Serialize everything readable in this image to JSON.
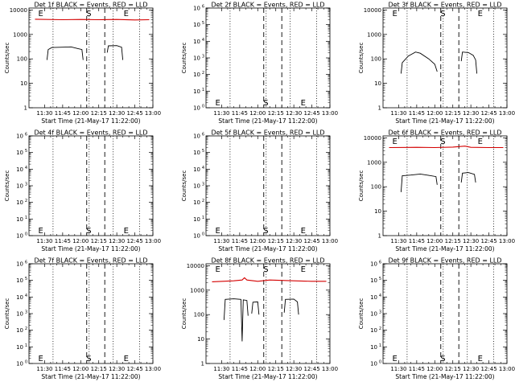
{
  "colors": {
    "events": "#000000",
    "lld": "#d40000",
    "background": "#ffffff"
  },
  "time_axis": {
    "start_minutes": 677,
    "end_minutes": 780,
    "ticks": [
      "11:30",
      "11:45",
      "12:00",
      "12:15",
      "12:30",
      "12:45",
      "13:00"
    ],
    "xlabel": "Start Time (21-May-17 11:22:00)"
  },
  "markers": {
    "dotted": [
      "11:37",
      "12:07",
      "12:27",
      "12:49"
    ],
    "dashed": [
      "12:05",
      "12:20"
    ],
    "letter_S_at": "12:04",
    "letter_E_at": "12:35",
    "letter_E_early_at": "11:24"
  },
  "log_ticks_counts": [
    "1",
    "10",
    "100",
    "1000",
    "10000"
  ],
  "chart_data": [
    {
      "type": "line",
      "title": "Det 1f BLACK = Events, RED = LLD",
      "ylabel": "Counts/sec",
      "ylim": [
        1,
        12000
      ],
      "yscale": "log",
      "ticks": "counts",
      "letters": [
        "E",
        "S",
        "E"
      ],
      "letters_pos": "top",
      "series": [
        {
          "name": "LLD",
          "color": "red",
          "points": [
            [
              "11:22",
              4200
            ],
            [
              "11:45",
              4000
            ],
            [
              "12:00",
              4100
            ],
            [
              "12:15",
              4000
            ],
            [
              "12:30",
              4100
            ],
            [
              "12:45",
              3900
            ],
            [
              "12:57",
              4000
            ]
          ]
        },
        {
          "name": "Events",
          "color": "black",
          "segments": [
            [
              [
                "11:32",
                90
              ],
              [
                "11:33",
                240
              ],
              [
                "11:36",
                290
              ],
              [
                "11:45",
                300
              ],
              [
                "11:52",
                310
              ],
              [
                "11:58",
                260
              ],
              [
                "12:01",
                240
              ],
              [
                "12:02",
                90
              ]
            ],
            [
              [
                "12:22",
                180
              ],
              [
                "12:23",
                340
              ],
              [
                "12:30",
                350
              ],
              [
                "12:34",
                300
              ],
              [
                "12:35",
                90
              ]
            ]
          ]
        }
      ]
    },
    {
      "type": "line",
      "title": "Det 2f BLACK = Events, RED = LLD",
      "ylabel": "Counts/sec",
      "ylim": [
        1,
        1000000
      ],
      "yscale": "log",
      "ticks": "exponent",
      "letters": [
        "E",
        "S",
        "E"
      ],
      "letters_pos": "bottom",
      "series": []
    },
    {
      "type": "line",
      "title": "Det 3f BLACK = Events, RED = LLD",
      "ylabel": "Counts/sec",
      "ylim": [
        1,
        12000
      ],
      "yscale": "log",
      "ticks": "counts",
      "letters": [
        "E",
        "S",
        "E"
      ],
      "letters_pos": "top",
      "series": [
        {
          "name": "Events",
          "color": "black",
          "segments": [
            [
              [
                "11:32",
                25
              ],
              [
                "11:33",
                70
              ],
              [
                "11:38",
                130
              ],
              [
                "11:44",
                190
              ],
              [
                "11:48",
                170
              ],
              [
                "11:55",
                100
              ],
              [
                "12:00",
                60
              ],
              [
                "12:02",
                30
              ]
            ],
            [
              [
                "12:22",
                80
              ],
              [
                "12:23",
                190
              ],
              [
                "12:28",
                180
              ],
              [
                "12:32",
                140
              ],
              [
                "12:34",
                90
              ],
              [
                "12:35",
                25
              ]
            ]
          ]
        }
      ]
    },
    {
      "type": "line",
      "title": "Det 4f BLACK = Events, RED = LLD",
      "ylabel": "Counts/sec",
      "ylim": [
        1,
        1000000
      ],
      "yscale": "log",
      "ticks": "exponent",
      "letters": [
        "E",
        "S",
        "E"
      ],
      "letters_pos": "bottom",
      "series": []
    },
    {
      "type": "line",
      "title": "Det 5f BLACK = Events, RED = LLD",
      "ylabel": "Counts/sec",
      "ylim": [
        1,
        1000000
      ],
      "yscale": "log",
      "ticks": "exponent",
      "letters": [
        "E",
        "S",
        "E"
      ],
      "letters_pos": "bottom",
      "series": []
    },
    {
      "type": "line",
      "title": "Det 6f BLACK = Events, RED = LLD",
      "ylabel": "Counts/sec",
      "ylim": [
        1,
        12000
      ],
      "yscale": "log",
      "ticks": "counts",
      "letters": [
        "E",
        "S",
        "E"
      ],
      "letters_pos": "top",
      "series": [
        {
          "name": "LLD",
          "color": "red",
          "points": [
            [
              "11:22",
              4000
            ],
            [
              "11:45",
              4100
            ],
            [
              "12:00",
              4000
            ],
            [
              "12:15",
              4200
            ],
            [
              "12:25",
              4600
            ],
            [
              "12:30",
              4100
            ],
            [
              "12:45",
              4000
            ],
            [
              "12:57",
              4000
            ]
          ]
        },
        {
          "name": "Events",
          "color": "black",
          "segments": [
            [
              [
                "11:32",
                60
              ],
              [
                "11:33",
                280
              ],
              [
                "11:40",
                300
              ],
              [
                "11:48",
                330
              ],
              [
                "11:55",
                290
              ],
              [
                "12:01",
                260
              ],
              [
                "12:02",
                120
              ]
            ],
            [
              [
                "12:22",
                150
              ],
              [
                "12:23",
                360
              ],
              [
                "12:28",
                380
              ],
              [
                "12:33",
                320
              ],
              [
                "12:34",
                150
              ]
            ]
          ]
        }
      ]
    },
    {
      "type": "line",
      "title": "Det 7f BLACK = Events, RED = LLD",
      "ylabel": "Counts/sec",
      "ylim": [
        1,
        1000000
      ],
      "yscale": "log",
      "ticks": "exponent",
      "letters": [
        "E",
        "S",
        "E"
      ],
      "letters_pos": "bottom",
      "series": []
    },
    {
      "type": "line",
      "title": "Det 8f BLACK = Events, RED = LLD",
      "ylabel": "Counts/sec",
      "ylim": [
        1,
        12000
      ],
      "yscale": "log",
      "ticks": "counts",
      "letters": [
        "E",
        "S",
        "E"
      ],
      "letters_pos": "top",
      "series": [
        {
          "name": "LLD",
          "color": "red",
          "points": [
            [
              "11:22",
              2200
            ],
            [
              "11:40",
              2400
            ],
            [
              "11:47",
              2600
            ],
            [
              "11:49",
              3200
            ],
            [
              "11:51",
              2600
            ],
            [
              "12:00",
              2300
            ],
            [
              "12:10",
              2600
            ],
            [
              "12:20",
              2500
            ],
            [
              "12:30",
              2400
            ],
            [
              "12:45",
              2300
            ],
            [
              "12:57",
              2300
            ]
          ]
        },
        {
          "name": "Events",
          "color": "black",
          "segments": [
            [
              [
                "11:32",
                60
              ],
              [
                "11:33",
                420
              ],
              [
                "11:40",
                440
              ],
              [
                "11:46",
                420
              ],
              [
                "11:47",
                8
              ],
              [
                "11:48",
                400
              ],
              [
                "11:51",
                380
              ],
              [
                "11:52",
                90
              ]
            ],
            [
              [
                "11:55",
                110
              ],
              [
                "11:56",
                320
              ],
              [
                "12:00",
                330
              ],
              [
                "12:01",
                100
              ]
            ],
            [
              [
                "12:22",
                120
              ],
              [
                "12:23",
                420
              ],
              [
                "12:30",
                430
              ],
              [
                "12:33",
                330
              ],
              [
                "12:34",
                100
              ]
            ]
          ]
        }
      ]
    },
    {
      "type": "line",
      "title": "Det 9f BLACK = Events, RED = LLD",
      "ylabel": "Counts/sec",
      "ylim": [
        1,
        1000000
      ],
      "yscale": "log",
      "ticks": "exponent",
      "letters": [
        "E",
        "S",
        "E"
      ],
      "letters_pos": "bottom",
      "series": []
    }
  ]
}
